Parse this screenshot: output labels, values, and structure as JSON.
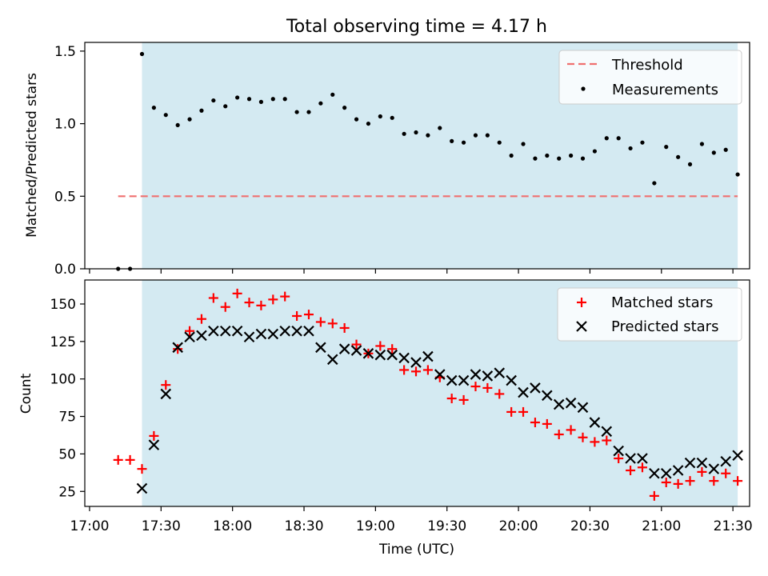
{
  "title": "Total observing time = 4.17 h",
  "chart_data": [
    {
      "type": "scatter",
      "ylabel": "Matched/Predicted stars",
      "ylim": [
        0,
        1.56
      ],
      "yticks": [
        "0.0",
        "0.5",
        "1.0",
        "1.5"
      ],
      "observing_window": [
        "17:22",
        "21:32"
      ],
      "legend_position": "upper right",
      "threshold": {
        "name": "Threshold",
        "value": 0.5,
        "x_range": [
          "17:12",
          "21:32"
        ],
        "color": "#f07070"
      },
      "series": [
        {
          "name": "Measurements",
          "color": "#000000",
          "points": [
            [
              "17:12",
              0.0
            ],
            [
              "17:17",
              0.0
            ],
            [
              "17:22",
              1.48
            ],
            [
              "17:27",
              1.11
            ],
            [
              "17:32",
              1.06
            ],
            [
              "17:37",
              0.99
            ],
            [
              "17:42",
              1.03
            ],
            [
              "17:47",
              1.09
            ],
            [
              "17:52",
              1.16
            ],
            [
              "17:57",
              1.12
            ],
            [
              "18:02",
              1.18
            ],
            [
              "18:07",
              1.17
            ],
            [
              "18:12",
              1.15
            ],
            [
              "18:17",
              1.17
            ],
            [
              "18:22",
              1.17
            ],
            [
              "18:27",
              1.08
            ],
            [
              "18:32",
              1.08
            ],
            [
              "18:37",
              1.14
            ],
            [
              "18:42",
              1.2
            ],
            [
              "18:47",
              1.11
            ],
            [
              "18:52",
              1.03
            ],
            [
              "18:57",
              1.0
            ],
            [
              "19:02",
              1.05
            ],
            [
              "19:07",
              1.04
            ],
            [
              "19:12",
              0.93
            ],
            [
              "19:17",
              0.94
            ],
            [
              "19:22",
              0.92
            ],
            [
              "19:27",
              0.97
            ],
            [
              "19:32",
              0.88
            ],
            [
              "19:37",
              0.87
            ],
            [
              "19:42",
              0.92
            ],
            [
              "19:47",
              0.92
            ],
            [
              "19:52",
              0.87
            ],
            [
              "19:57",
              0.78
            ],
            [
              "20:02",
              0.86
            ],
            [
              "20:07",
              0.76
            ],
            [
              "20:12",
              0.78
            ],
            [
              "20:17",
              0.76
            ],
            [
              "20:22",
              0.78
            ],
            [
              "20:27",
              0.76
            ],
            [
              "20:32",
              0.81
            ],
            [
              "20:37",
              0.9
            ],
            [
              "20:42",
              0.9
            ],
            [
              "20:47",
              0.83
            ],
            [
              "20:52",
              0.87
            ],
            [
              "20:57",
              0.59
            ],
            [
              "21:02",
              0.84
            ],
            [
              "21:07",
              0.77
            ],
            [
              "21:12",
              0.72
            ],
            [
              "21:17",
              0.86
            ],
            [
              "21:22",
              0.8
            ],
            [
              "21:27",
              0.82
            ],
            [
              "21:32",
              0.65
            ]
          ]
        }
      ]
    },
    {
      "type": "scatter",
      "xlabel": "Time (UTC)",
      "ylabel": "Count",
      "ylim": [
        15,
        166
      ],
      "xlim": [
        "16:58",
        "21:37"
      ],
      "xticks": [
        "17:00",
        "17:30",
        "18:00",
        "18:30",
        "19:00",
        "19:30",
        "20:00",
        "20:30",
        "21:00",
        "21:30"
      ],
      "yticks": [
        "25",
        "50",
        "75",
        "100",
        "125",
        "150"
      ],
      "observing_window": [
        "17:22",
        "21:32"
      ],
      "legend_position": "upper right",
      "series": [
        {
          "name": "Matched stars",
          "color": "#ff0000",
          "marker": "plus",
          "points": [
            [
              "17:12",
              46
            ],
            [
              "17:17",
              46
            ],
            [
              "17:22",
              40
            ],
            [
              "17:27",
              62
            ],
            [
              "17:32",
              96
            ],
            [
              "17:37",
              120
            ],
            [
              "17:42",
              132
            ],
            [
              "17:47",
              140
            ],
            [
              "17:52",
              154
            ],
            [
              "17:57",
              148
            ],
            [
              "18:02",
              157
            ],
            [
              "18:07",
              151
            ],
            [
              "18:12",
              149
            ],
            [
              "18:17",
              153
            ],
            [
              "18:22",
              155
            ],
            [
              "18:27",
              142
            ],
            [
              "18:32",
              143
            ],
            [
              "18:37",
              138
            ],
            [
              "18:42",
              137
            ],
            [
              "18:47",
              134
            ],
            [
              "18:52",
              123
            ],
            [
              "18:57",
              117
            ],
            [
              "19:02",
              122
            ],
            [
              "19:07",
              120
            ],
            [
              "19:12",
              106
            ],
            [
              "19:17",
              105
            ],
            [
              "19:22",
              106
            ],
            [
              "19:27",
              101
            ],
            [
              "19:32",
              87
            ],
            [
              "19:37",
              86
            ],
            [
              "19:42",
              95
            ],
            [
              "19:47",
              94
            ],
            [
              "19:52",
              90
            ],
            [
              "19:57",
              78
            ],
            [
              "20:02",
              78
            ],
            [
              "20:07",
              71
            ],
            [
              "20:12",
              70
            ],
            [
              "20:17",
              63
            ],
            [
              "20:22",
              66
            ],
            [
              "20:27",
              61
            ],
            [
              "20:32",
              58
            ],
            [
              "20:37",
              59
            ],
            [
              "20:42",
              47
            ],
            [
              "20:47",
              39
            ],
            [
              "20:52",
              41
            ],
            [
              "20:57",
              22
            ],
            [
              "21:02",
              31
            ],
            [
              "21:07",
              30
            ],
            [
              "21:12",
              32
            ],
            [
              "21:17",
              38
            ],
            [
              "21:22",
              32
            ],
            [
              "21:27",
              37
            ],
            [
              "21:32",
              32
            ]
          ]
        },
        {
          "name": "Predicted stars",
          "color": "#000000",
          "marker": "x",
          "points": [
            [
              "17:22",
              27
            ],
            [
              "17:27",
              56
            ],
            [
              "17:32",
              90
            ],
            [
              "17:37",
              121
            ],
            [
              "17:42",
              128
            ],
            [
              "17:47",
              129
            ],
            [
              "17:52",
              132
            ],
            [
              "17:57",
              132
            ],
            [
              "18:02",
              132
            ],
            [
              "18:07",
              128
            ],
            [
              "18:12",
              130
            ],
            [
              "18:17",
              130
            ],
            [
              "18:22",
              132
            ],
            [
              "18:27",
              132
            ],
            [
              "18:32",
              132
            ],
            [
              "18:37",
              121
            ],
            [
              "18:42",
              113
            ],
            [
              "18:47",
              120
            ],
            [
              "18:52",
              119
            ],
            [
              "18:57",
              117
            ],
            [
              "19:02",
              116
            ],
            [
              "19:07",
              116
            ],
            [
              "19:12",
              114
            ],
            [
              "19:17",
              111
            ],
            [
              "19:22",
              115
            ],
            [
              "19:27",
              103
            ],
            [
              "19:32",
              99
            ],
            [
              "19:37",
              99
            ],
            [
              "19:42",
              103
            ],
            [
              "19:47",
              102
            ],
            [
              "19:52",
              104
            ],
            [
              "19:57",
              99
            ],
            [
              "20:02",
              91
            ],
            [
              "20:07",
              94
            ],
            [
              "20:12",
              89
            ],
            [
              "20:17",
              83
            ],
            [
              "20:22",
              84
            ],
            [
              "20:27",
              81
            ],
            [
              "20:32",
              71
            ],
            [
              "20:37",
              65
            ],
            [
              "20:42",
              52
            ],
            [
              "20:47",
              47
            ],
            [
              "20:52",
              47
            ],
            [
              "20:57",
              37
            ],
            [
              "21:02",
              37
            ],
            [
              "21:07",
              39
            ],
            [
              "21:12",
              44
            ],
            [
              "21:17",
              44
            ],
            [
              "21:22",
              40
            ],
            [
              "21:27",
              45
            ],
            [
              "21:32",
              49
            ]
          ]
        }
      ]
    }
  ],
  "colors": {
    "window_fill": "#add8e6"
  }
}
